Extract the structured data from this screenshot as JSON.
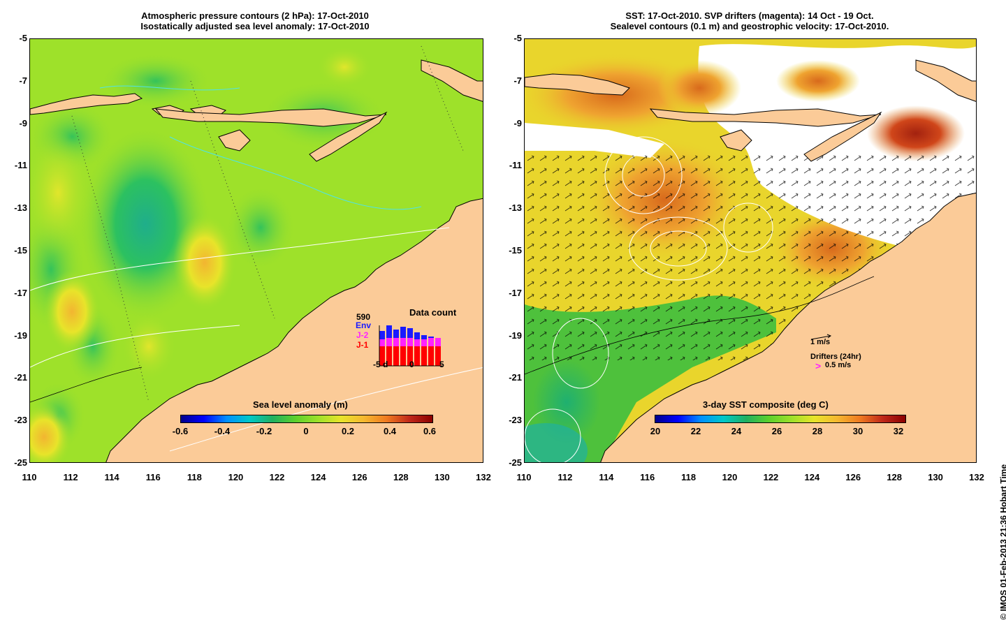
{
  "left_panel": {
    "title_line1": "Atmospheric pressure contours (2 hPa): 17-Oct-2010",
    "title_line2": "Isostatically adjusted sea level anomaly: 17-Oct-2010",
    "colorbar_title": "Sea level anomaly (m)",
    "colorbar_ticks": [
      "-0.6",
      "-0.4",
      "-0.2",
      "0",
      "0.2",
      "0.4",
      "0.6"
    ],
    "data_count": {
      "title": "Data count",
      "max_label": "590",
      "series": [
        {
          "name": "Env",
          "color": "#1a1aff"
        },
        {
          "name": "J-2",
          "color": "#ff22ff"
        },
        {
          "name": "J-1",
          "color": "#ff0000"
        }
      ],
      "x_ticks": [
        "-5 d",
        "0",
        "5"
      ]
    }
  },
  "right_panel": {
    "title_line1": "SST: 17-Oct-2010. SVP drifters (magenta): 14 Oct - 19 Oct.",
    "title_line2": "Sealevel contours (0.1 m) and geostrophic velocity: 17-Oct-2010.",
    "colorbar_title": "3-day SST composite (deg C)",
    "colorbar_ticks": [
      "20",
      "22",
      "24",
      "26",
      "28",
      "30",
      "32"
    ],
    "velocity_scale_label": "1 m/s",
    "drifters_label": "Drifters (24hr)",
    "drifter_scale_label": "0.5 m/s"
  },
  "axes": {
    "y_ticks": [
      "-5",
      "-7",
      "-9",
      "-11",
      "-13",
      "-15",
      "-17",
      "-19",
      "-21",
      "-23",
      "-25"
    ],
    "x_ticks": [
      "110",
      "112",
      "114",
      "116",
      "118",
      "120",
      "122",
      "124",
      "126",
      "128",
      "130",
      "132"
    ]
  },
  "credit": "© IMOS 01-Feb-2013 21:36 Hobart Time",
  "colors": {
    "land": "#fbcb98",
    "sla_background": "#9ee12a",
    "sst_background": "#e9d52c"
  }
}
